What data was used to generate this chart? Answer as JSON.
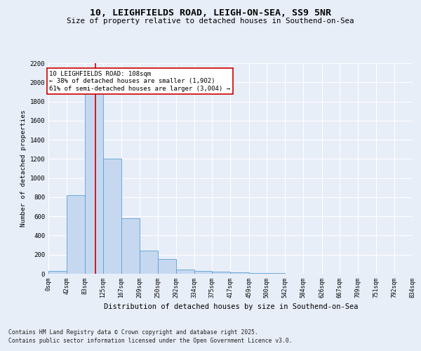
{
  "title1": "10, LEIGHFIELDS ROAD, LEIGH-ON-SEA, SS9 5NR",
  "title2": "Size of property relative to detached houses in Southend-on-Sea",
  "xlabel": "Distribution of detached houses by size in Southend-on-Sea",
  "ylabel": "Number of detached properties",
  "bin_edges": [
    0,
    42,
    83,
    125,
    167,
    209,
    250,
    292,
    334,
    375,
    417,
    459,
    500,
    542,
    584,
    626,
    667,
    709,
    751,
    792,
    834
  ],
  "bar_heights": [
    30,
    820,
    1900,
    1200,
    580,
    240,
    155,
    45,
    30,
    25,
    15,
    8,
    5,
    3,
    2,
    1,
    1,
    1,
    0,
    0
  ],
  "bar_color": "#c5d8f0",
  "bar_edge_color": "#5a9fd4",
  "red_line_x": 108,
  "annotation_title": "10 LEIGHFIELDS ROAD: 108sqm",
  "annotation_line1": "← 38% of detached houses are smaller (1,902)",
  "annotation_line2": "61% of semi-detached houses are larger (3,004) →",
  "annotation_box_color": "#ffffff",
  "annotation_border_color": "#cc0000",
  "footer1": "Contains HM Land Registry data © Crown copyright and database right 2025.",
  "footer2": "Contains public sector information licensed under the Open Government Licence v3.0.",
  "ylim": [
    0,
    2200
  ],
  "yticks": [
    0,
    200,
    400,
    600,
    800,
    1000,
    1200,
    1400,
    1600,
    1800,
    2000,
    2200
  ],
  "bg_color": "#e8eef8",
  "plot_bg_color": "#e8eef8",
  "grid_color": "#ffffff"
}
